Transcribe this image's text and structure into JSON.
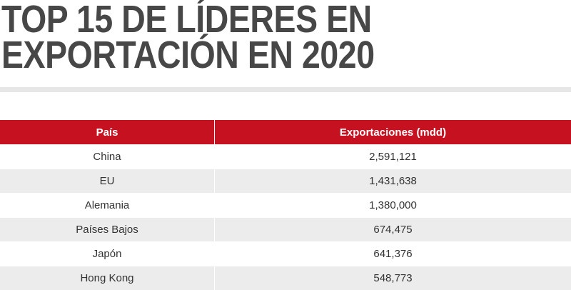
{
  "title": {
    "line1": "TOP 15 DE LÍDERES EN",
    "line2": "EXPORTACIÓN EN 2020"
  },
  "table": {
    "headers": [
      "País",
      "Exportaciones (mdd)"
    ],
    "rows": [
      {
        "country": "China",
        "exports": "2,591,121"
      },
      {
        "country": "EU",
        "exports": "1,431,638"
      },
      {
        "country": "Alemania",
        "exports": "1,380,000"
      },
      {
        "country": "Países Bajos",
        "exports": "674,475"
      },
      {
        "country": "Japón",
        "exports": "641,376"
      },
      {
        "country": "Hong Kong",
        "exports": "548,773"
      }
    ]
  },
  "colors": {
    "header": "#c51120",
    "title": "#474747",
    "alt_row": "#ececec"
  }
}
